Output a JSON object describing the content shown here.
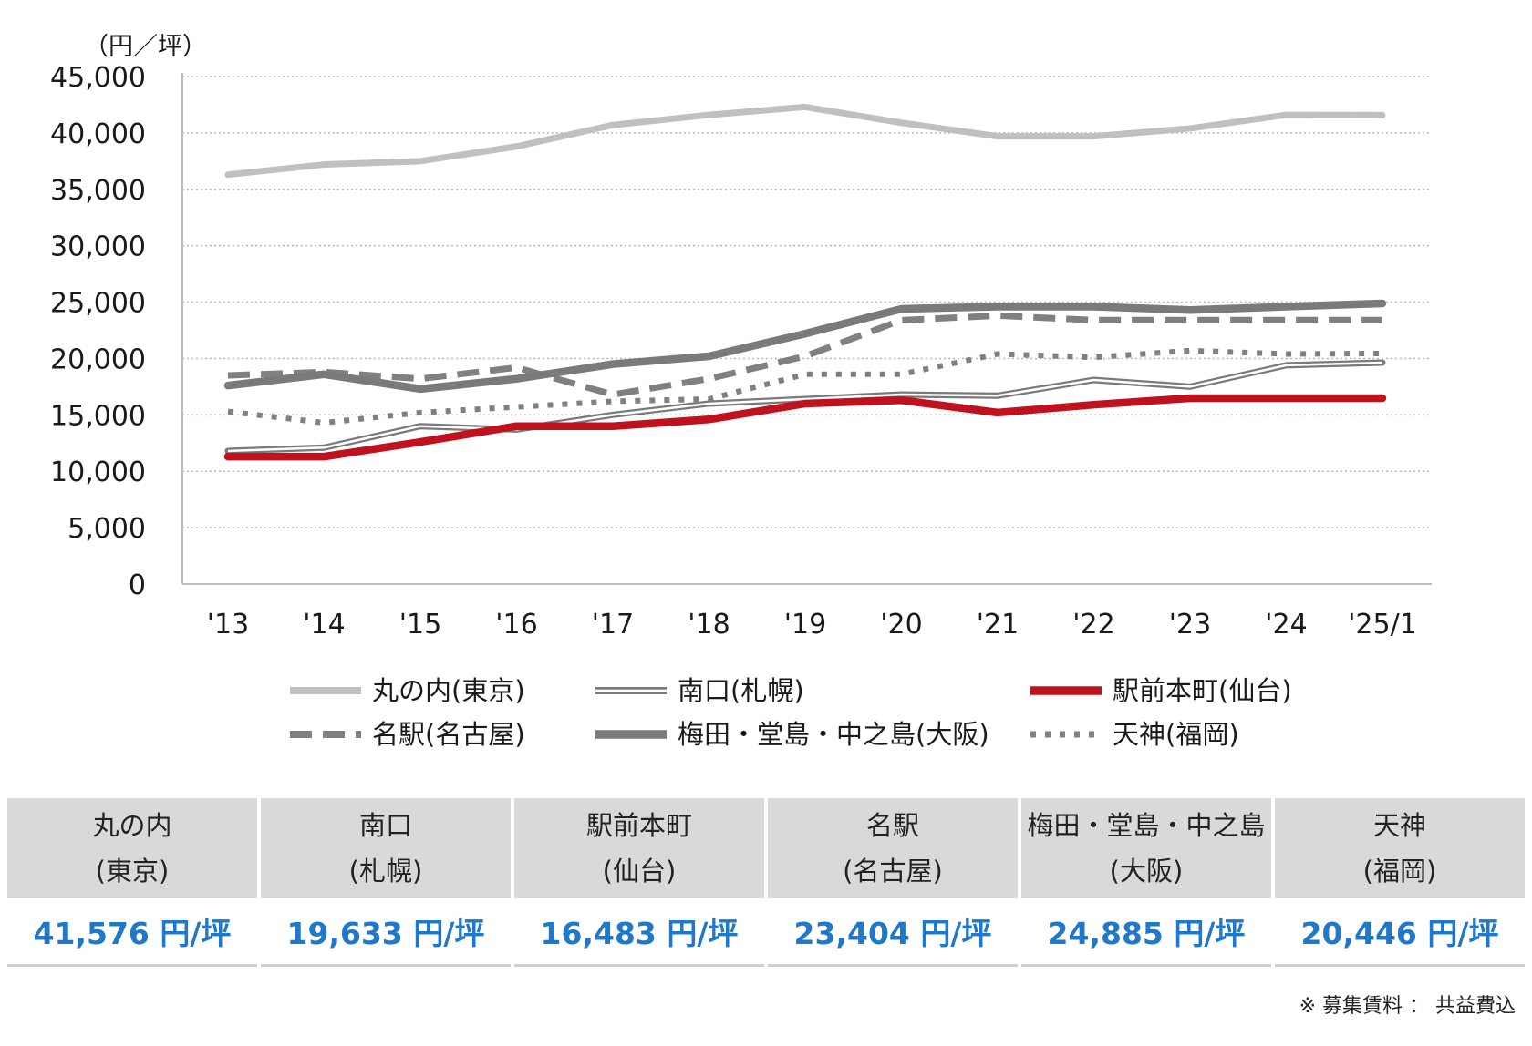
{
  "chart_data": {
    "type": "line",
    "unit_label": "（円／坪）",
    "ylim": [
      0,
      45000
    ],
    "yticks": [
      "45,000",
      "40,000",
      "35,000",
      "30,000",
      "25,000",
      "20,000",
      "15,000",
      "10,000",
      "5,000",
      "0"
    ],
    "ytick_values": [
      45000,
      40000,
      35000,
      30000,
      25000,
      20000,
      15000,
      10000,
      5000,
      0
    ],
    "categories": [
      "'13",
      "'14",
      "'15",
      "'16",
      "'17",
      "'18",
      "'19",
      "'20",
      "'21",
      "'22",
      "'23",
      "'24",
      "'25/1"
    ],
    "grid": "horizontal dotted",
    "legend_position": "bottom",
    "series": [
      {
        "name": "丸の内(東京)",
        "color": "#c0c0c0",
        "style": "solid",
        "values": [
          36300,
          37200,
          37500,
          38800,
          40700,
          41600,
          42300,
          40900,
          39700,
          39700,
          40400,
          41600,
          41576
        ]
      },
      {
        "name": "南口(札幌)",
        "color": "#7a7a7a",
        "style": "double",
        "values": [
          11800,
          12100,
          14000,
          13700,
          15000,
          16000,
          16400,
          16800,
          16700,
          18100,
          17500,
          19400,
          19633
        ]
      },
      {
        "name": "駅前本町(仙台)",
        "color": "#c0121e",
        "style": "solid-bold",
        "values": [
          11300,
          11300,
          12600,
          14000,
          14000,
          14600,
          16000,
          16300,
          15200,
          15900,
          16483,
          16483,
          16483
        ]
      },
      {
        "name": "名駅(名古屋)",
        "color": "#808080",
        "style": "dashed",
        "values": [
          18500,
          18800,
          18200,
          19200,
          16800,
          18200,
          20200,
          23400,
          23800,
          23404,
          23404,
          23404,
          23404
        ]
      },
      {
        "name": "梅田・堂島・中之島(大阪)",
        "color": "#7a7a7a",
        "style": "solid-bold",
        "values": [
          17600,
          18600,
          17300,
          18200,
          19500,
          20200,
          22200,
          24400,
          24600,
          24600,
          24300,
          24600,
          24885
        ]
      },
      {
        "name": "天神(福岡)",
        "color": "#808080",
        "style": "dotted",
        "values": [
          15300,
          14300,
          15200,
          15700,
          16200,
          16400,
          18600,
          18600,
          20400,
          20100,
          20700,
          20400,
          20446
        ]
      }
    ]
  },
  "legend": {
    "items": [
      "丸の内(東京)",
      "南口(札幌)",
      "駅前本町(仙台)",
      "名駅(名古屋)",
      "梅田・堂島・中之島(大阪)",
      "天神(福岡)"
    ]
  },
  "table": {
    "headers": [
      {
        "line1": "丸の内",
        "line2": "(東京)"
      },
      {
        "line1": "南口",
        "line2": "(札幌)"
      },
      {
        "line1": "駅前本町",
        "line2": "(仙台)"
      },
      {
        "line1": "名駅",
        "line2": "(名古屋)"
      },
      {
        "line1": "梅田・堂島・中之島",
        "line2": "(大阪)"
      },
      {
        "line1": "天神",
        "line2": "(福岡)"
      }
    ],
    "values": [
      "41,576 円/坪",
      "19,633 円/坪",
      "16,483 円/坪",
      "23,404 円/坪",
      "24,885 円/坪",
      "20,446 円/坪"
    ]
  },
  "note": "※ 募集賃料 ： 共益費込"
}
